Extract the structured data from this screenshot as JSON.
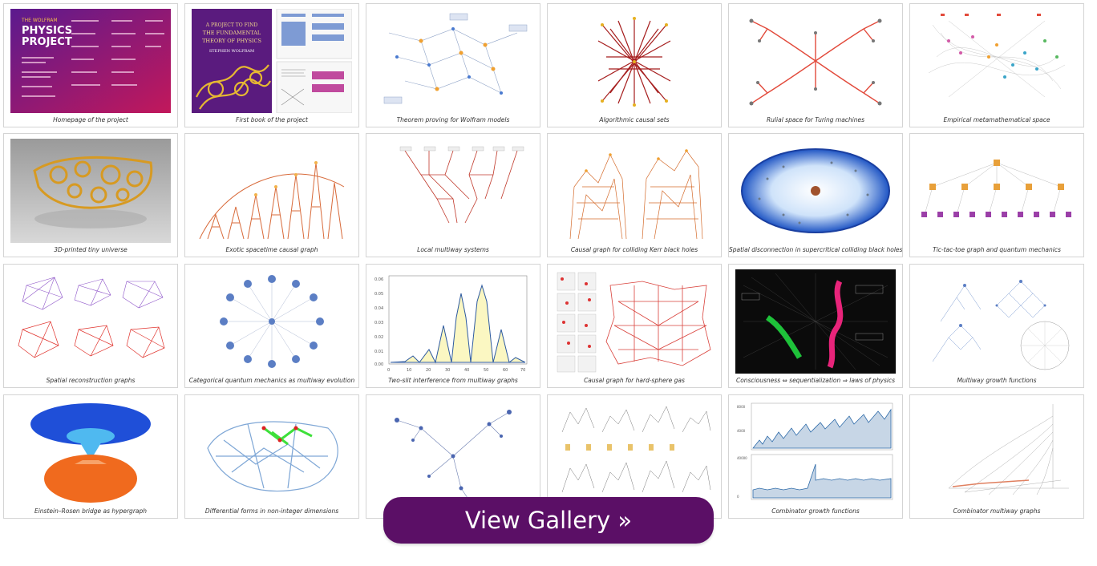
{
  "gallery": {
    "items": [
      {
        "caption": "Homepage of the project",
        "cover": {
          "top": "THE WOLFRAM",
          "title_line1": "PHYSICS",
          "title_line2": "PROJECT"
        }
      },
      {
        "caption": "First book of the project",
        "book": {
          "line1": "A PROJECT TO FIND",
          "line2": "THE FUNDAMENTAL",
          "line3": "THEORY OF PHYSICS",
          "author": "STEPHEN WOLFRAM"
        }
      },
      {
        "caption": "Theorem proving for Wolfram models"
      },
      {
        "caption": "Algorithmic causal sets"
      },
      {
        "caption": "Rulial space for Turing machines"
      },
      {
        "caption": "Empirical metamathematical space"
      },
      {
        "caption": "3D-printed tiny universe"
      },
      {
        "caption": "Exotic spacetime causal graph"
      },
      {
        "caption": "Local multiway systems"
      },
      {
        "caption": "Causal graph for colliding Kerr black holes"
      },
      {
        "caption": "Spatial disconnection in supercritical colliding black holes"
      },
      {
        "caption": "Tic-tac-toe graph and quantum mechanics"
      },
      {
        "caption": "Spatial reconstruction graphs"
      },
      {
        "caption": "Categorical quantum mechanics  as multiway evolution"
      },
      {
        "caption": "Two-slit interference from multiway graphs"
      },
      {
        "caption": "Causal graph for hard-sphere gas"
      },
      {
        "caption": "Consciousness ⇔ sequentialization ⇒ laws of physics"
      },
      {
        "caption": "Multiway growth functions"
      },
      {
        "caption": "Einstein–Rosen bridge as hypergraph"
      },
      {
        "caption": "Differential forms in non-integer dimensions"
      },
      {
        "caption": ""
      },
      {
        "caption": ""
      },
      {
        "caption": "Combinator growth functions"
      },
      {
        "caption": "Combinator multiway graphs"
      }
    ]
  },
  "button": {
    "label": "View Gallery »"
  },
  "colors": {
    "button_bg": "#5b0f66",
    "card_border": "#d4d4d4",
    "cover_purple": "#6a1b8f",
    "cover_magenta": "#c2185b"
  }
}
